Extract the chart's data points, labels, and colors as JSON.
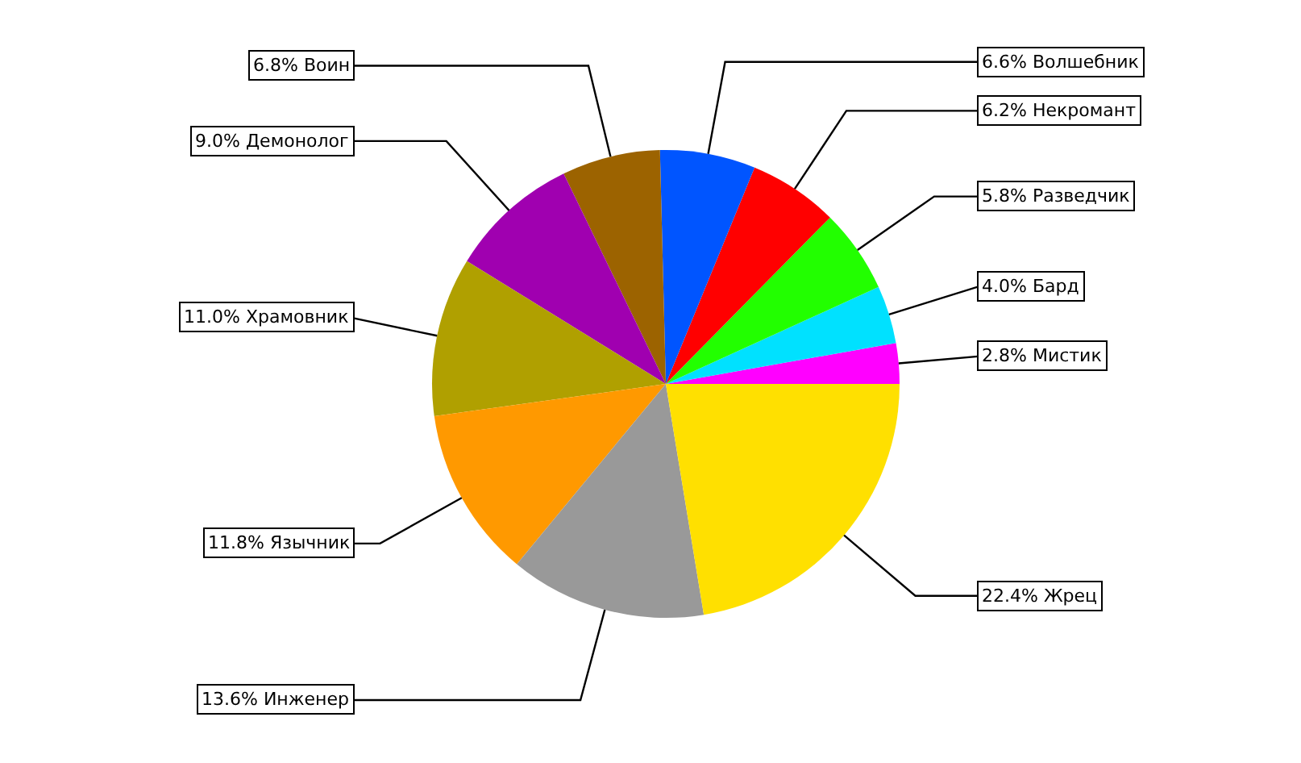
{
  "chart_data": {
    "type": "pie",
    "categories": [
      "Мистик",
      "Бард",
      "Разведчик",
      "Некромант",
      "Волшебник",
      "Воин",
      "Демонолог",
      "Храмовник",
      "Язычник",
      "Инженер",
      "Жрец"
    ],
    "values": [
      2.8,
      4.0,
      5.8,
      6.2,
      6.6,
      6.8,
      9.0,
      11.0,
      11.8,
      13.6,
      22.4
    ],
    "colors": [
      "#ff00ff",
      "#00e1ff",
      "#22ff00",
      "#ff0000",
      "#0055ff",
      "#9c6300",
      "#a000b0",
      "#b0a000",
      "#ff9900",
      "#999999",
      "#ffe000"
    ],
    "value_labels": [
      "2.8%",
      "4.0%",
      "5.8%",
      "6.2%",
      "6.6%",
      "6.8%",
      "9.0%",
      "11.0%",
      "11.8%",
      "13.6%",
      "22.4%"
    ],
    "legend": false
  }
}
